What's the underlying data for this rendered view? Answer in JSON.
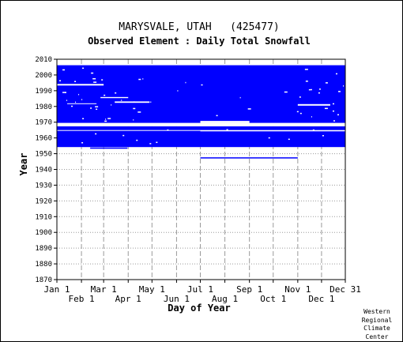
{
  "chart_data": {
    "type": "heatmap",
    "title": "MARYSVALE, UTAH   (425477)",
    "subtitle": "Observed Element : Daily Total Snowfall",
    "xlabel": "Day of Year",
    "ylabel": "Year",
    "ylim": [
      1870,
      2010
    ],
    "xlim": [
      "Jan 1",
      "Dec 31"
    ],
    "y_ticks": [
      1870,
      1880,
      1890,
      1900,
      1910,
      1920,
      1930,
      1940,
      1950,
      1960,
      1970,
      1980,
      1990,
      2000,
      2010
    ],
    "x_ticks_top_row": [
      "Jan 1",
      "Mar 1",
      "May 1",
      "Jul 1",
      "Sep 1",
      "Nov 1",
      "Dec 31"
    ],
    "x_ticks_bottom_row": [
      "Feb 1",
      "Apr 1",
      "Jun 1",
      "Aug 1",
      "Oct 1",
      "Dec 1"
    ],
    "grid": true,
    "data_color": "#0000ff",
    "series": [
      {
        "start": "Jan 1",
        "end": "Dec 31",
        "year_from": 1969.5,
        "year_to": 2006.2
      },
      {
        "start": "Jan 1",
        "end": "Dec 31",
        "year_from": 1954.2,
        "year_to": 1967.4
      },
      {
        "start": "Feb 12",
        "end": "Mar 31",
        "year_from": 1953.4,
        "year_to": 1953.9
      },
      {
        "start": "Jul 1",
        "end": "Nov 1",
        "year_from": 1947.2,
        "year_to": 1947.7
      }
    ],
    "gaps": [
      {
        "start": "Jan 1",
        "end": "Dec 31",
        "year_from": 1967.4,
        "year_to": 1969.5
      },
      {
        "start": "Jan 1",
        "end": "Dec 31",
        "year_from": 1964.6,
        "year_to": 1965.0
      },
      {
        "start": "Jul 1",
        "end": "Sep 1",
        "year_from": 1969.5,
        "year_to": 1970.8
      },
      {
        "start": "Jul 1",
        "end": "Dec 31",
        "year_from": 1964.3,
        "year_to": 1964.7
      },
      {
        "start": "Jan 1",
        "end": "Mar 1",
        "year_from": 1993.3,
        "year_to": 1994.3
      },
      {
        "start": "Feb 25",
        "end": "Apr 1",
        "year_from": 1985.3,
        "year_to": 1986.0
      },
      {
        "start": "Mar 15",
        "end": "Apr 28",
        "year_from": 1982.3,
        "year_to": 1983.2
      },
      {
        "start": "Jan 14",
        "end": "Feb 20",
        "year_from": 1981.5,
        "year_to": 1982.0
      },
      {
        "start": "Nov 1",
        "end": "Dec 12",
        "year_from": 1980.5,
        "year_to": 1981.5
      }
    ],
    "credit": [
      "Western",
      "Regional",
      "Climate",
      "Center"
    ]
  }
}
